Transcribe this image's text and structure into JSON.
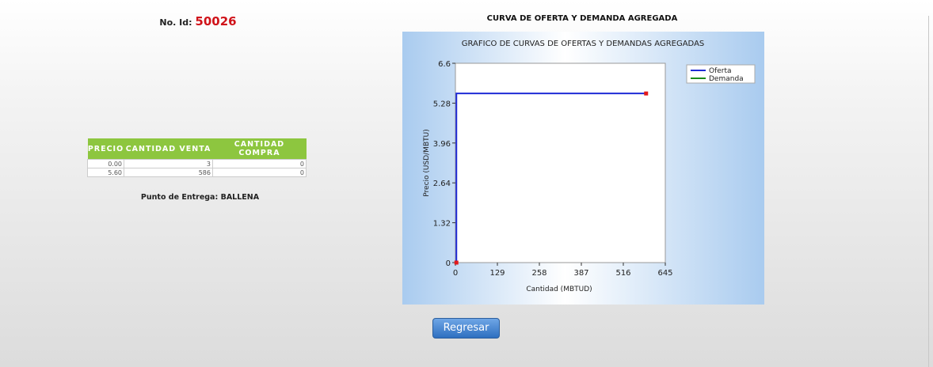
{
  "header": {
    "id_label": "No. Id:",
    "id_value": "50026"
  },
  "table": {
    "columns": [
      "PRECIO",
      "CANTIDAD VENTA",
      "CANTIDAD COMPRA"
    ],
    "rows": [
      [
        "0.00",
        "3",
        "0"
      ],
      [
        "5.60",
        "586",
        "0"
      ]
    ]
  },
  "delivery": "Punto de Entrega: BALLENA",
  "page_title": "CURVA DE OFERTA Y DEMANDA AGREGADA",
  "chart_data": {
    "type": "line",
    "title": "GRAFICO DE CURVAS DE OFERTAS Y DEMANDAS AGREGADAS",
    "x_label": "Cantidad (MBTUD)",
    "y_label": "Precio (USD/MBTU)",
    "xlim": [
      0,
      645
    ],
    "xticks": [
      0,
      129,
      258,
      387,
      516,
      645
    ],
    "ylim": [
      0,
      6.6
    ],
    "yticks": [
      0,
      1.32,
      2.64,
      3.96,
      5.28,
      6.6
    ],
    "legend": "top-right",
    "marker_color": "#e31a1c",
    "series": [
      {
        "name": "Oferta",
        "color": "#1f2bd6",
        "x": [
          3,
          3,
          586
        ],
        "values": [
          0,
          5.6,
          5.6
        ]
      },
      {
        "name": "Demanda",
        "color": "#1a8a1a",
        "x": [],
        "values": []
      }
    ]
  },
  "button": "Regresar"
}
